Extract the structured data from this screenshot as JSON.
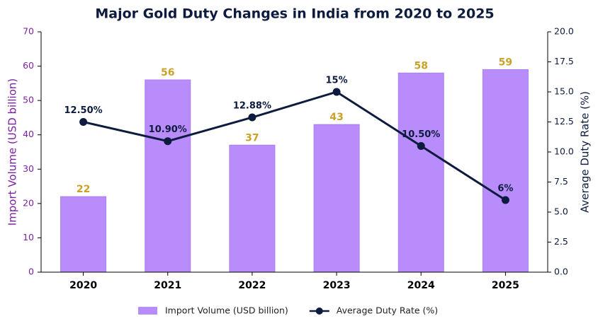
{
  "chart_data": {
    "type": "combo",
    "title": "Major Gold Duty Changes in India from 2020 to 2025",
    "categories": [
      "2020",
      "2021",
      "2022",
      "2023",
      "2024",
      "2025"
    ],
    "ylabel": "Import Volume (USD billion)",
    "y2label": "Average Duty Rate (%)",
    "ylim": [
      0,
      70
    ],
    "yticks": [
      0,
      10,
      20,
      30,
      40,
      50,
      60,
      70
    ],
    "y2lim": [
      0,
      20
    ],
    "y2ticks": [
      {
        "value": 0,
        "label": "0.0"
      },
      2.5,
      {
        "value": 5,
        "label": "5.0"
      },
      7.5,
      {
        "value": 10,
        "label": "10.0"
      },
      12.5,
      {
        "value": 15,
        "label": "15.0"
      },
      17.5,
      {
        "value": 20,
        "label": "20.0"
      }
    ],
    "legend": "bottom",
    "series": [
      {
        "name": "Import Volume (USD billion)",
        "type": "bar",
        "color": "#b98cfc",
        "values": [
          22,
          56,
          37,
          43,
          58,
          59
        ]
      },
      {
        "name": "Average Duty Rate (%)",
        "type": "line",
        "axis": "y2",
        "color": "#0d1b3e",
        "values": [
          12.5,
          10.9,
          12.88,
          15,
          10.5,
          6
        ],
        "value_labels": [
          "12.50%",
          "10.90%",
          "12.88%",
          "15%",
          "10.50%",
          "6%"
        ]
      }
    ]
  }
}
